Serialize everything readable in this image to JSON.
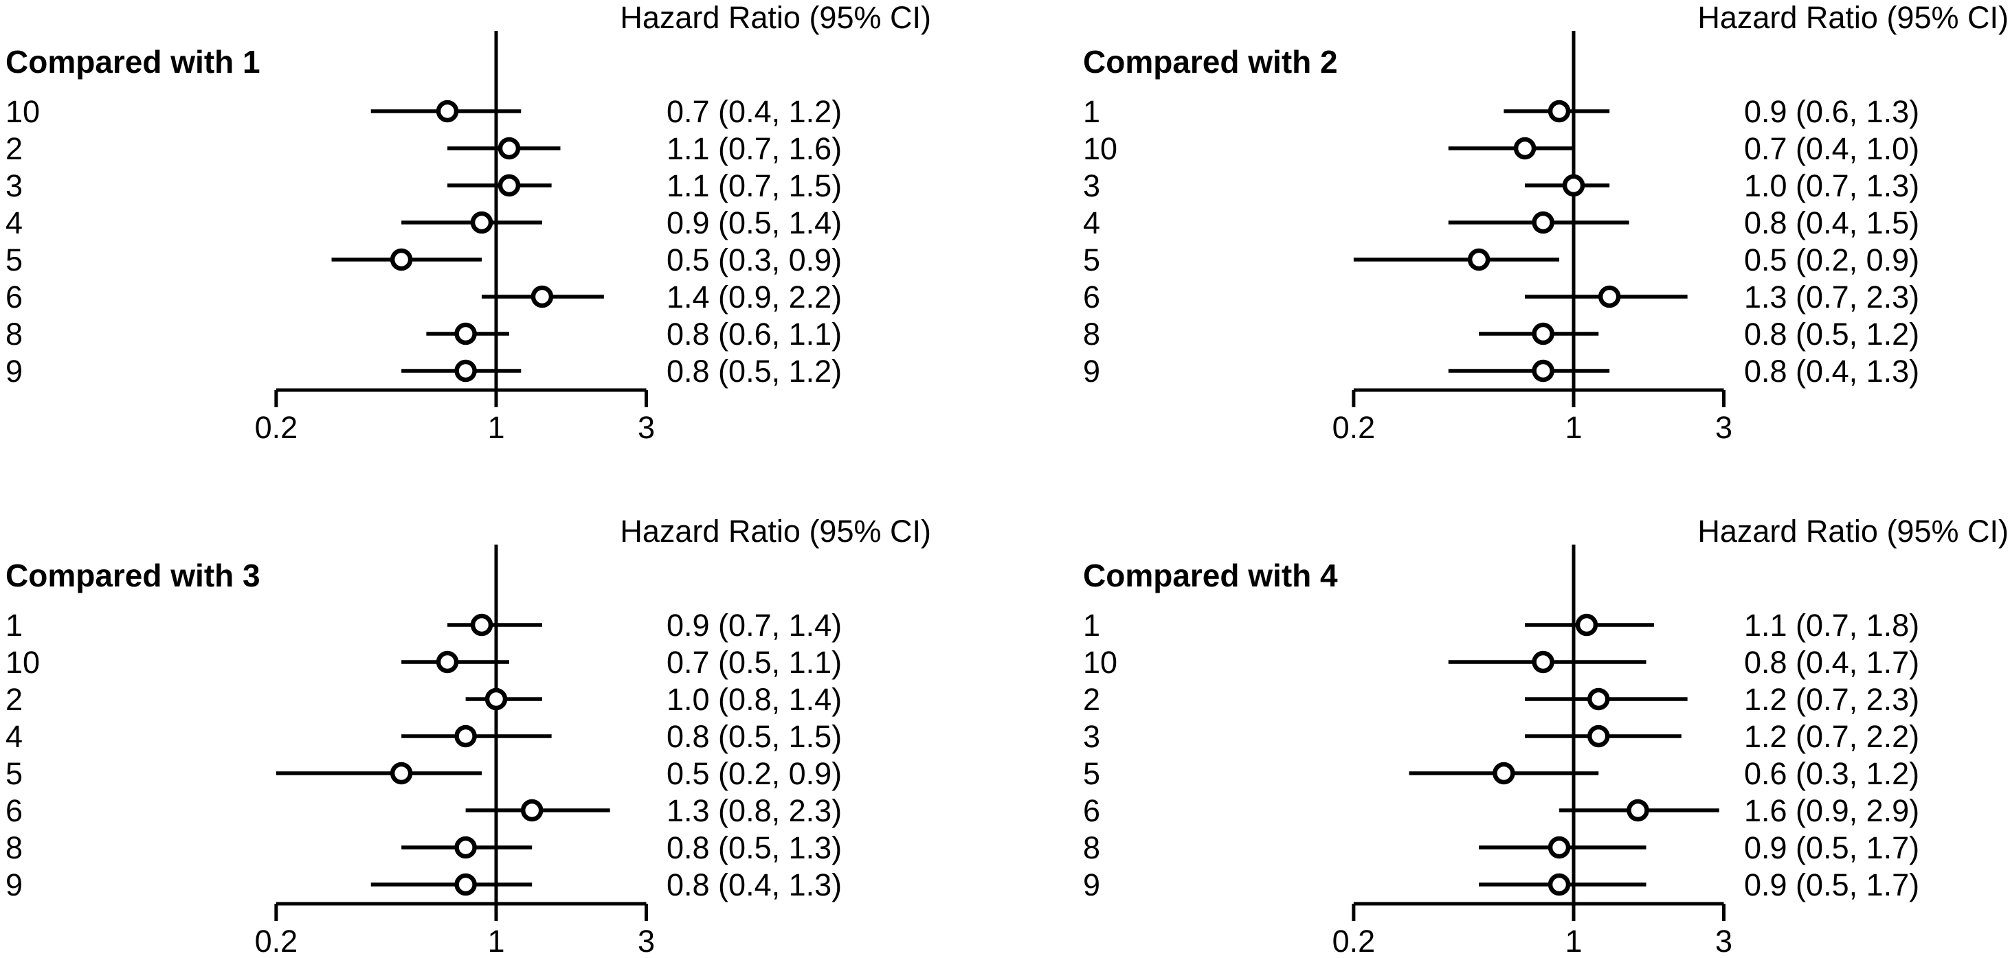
{
  "figure": {
    "background": "#ffffff",
    "foreground": "#000000"
  },
  "chart_data": [
    {
      "type": "forest",
      "panel": "top-left",
      "title": "Compared with 1",
      "column_header": "Hazard Ratio (95% CI)",
      "x_axis": {
        "scale": "log",
        "ticks": [
          0.2,
          1,
          3
        ],
        "tick_labels": [
          "0.2",
          "1",
          "3"
        ],
        "reference_line": 1
      },
      "rows": [
        {
          "label": "10",
          "hr": 0.7,
          "ci_low": 0.4,
          "ci_high": 1.2,
          "text": "0.7 (0.4, 1.2)"
        },
        {
          "label": "2",
          "hr": 1.1,
          "ci_low": 0.7,
          "ci_high": 1.6,
          "text": "1.1 (0.7, 1.6)"
        },
        {
          "label": "3",
          "hr": 1.1,
          "ci_low": 0.7,
          "ci_high": 1.5,
          "text": "1.1 (0.7, 1.5)"
        },
        {
          "label": "4",
          "hr": 0.9,
          "ci_low": 0.5,
          "ci_high": 1.4,
          "text": "0.9 (0.5, 1.4)"
        },
        {
          "label": "5",
          "hr": 0.5,
          "ci_low": 0.3,
          "ci_high": 0.9,
          "text": "0.5 (0.3, 0.9)"
        },
        {
          "label": "6",
          "hr": 1.4,
          "ci_low": 0.9,
          "ci_high": 2.2,
          "text": "1.4 (0.9, 2.2)"
        },
        {
          "label": "8",
          "hr": 0.8,
          "ci_low": 0.6,
          "ci_high": 1.1,
          "text": "0.8 (0.6, 1.1)"
        },
        {
          "label": "9",
          "hr": 0.8,
          "ci_low": 0.5,
          "ci_high": 1.2,
          "text": "0.8 (0.5, 1.2)"
        }
      ]
    },
    {
      "type": "forest",
      "panel": "top-right",
      "title": "Compared with 2",
      "column_header": "Hazard Ratio (95% CI)",
      "x_axis": {
        "scale": "log",
        "ticks": [
          0.2,
          1,
          3
        ],
        "tick_labels": [
          "0.2",
          "1",
          "3"
        ],
        "reference_line": 1
      },
      "rows": [
        {
          "label": "1",
          "hr": 0.9,
          "ci_low": 0.6,
          "ci_high": 1.3,
          "text": "0.9 (0.6, 1.3)"
        },
        {
          "label": "10",
          "hr": 0.7,
          "ci_low": 0.4,
          "ci_high": 1.0,
          "text": "0.7 (0.4, 1.0)"
        },
        {
          "label": "3",
          "hr": 1.0,
          "ci_low": 0.7,
          "ci_high": 1.3,
          "text": "1.0 (0.7, 1.3)"
        },
        {
          "label": "4",
          "hr": 0.8,
          "ci_low": 0.4,
          "ci_high": 1.5,
          "text": "0.8 (0.4, 1.5)"
        },
        {
          "label": "5",
          "hr": 0.5,
          "ci_low": 0.2,
          "ci_high": 0.9,
          "text": "0.5 (0.2, 0.9)"
        },
        {
          "label": "6",
          "hr": 1.3,
          "ci_low": 0.7,
          "ci_high": 2.3,
          "text": "1.3 (0.7, 2.3)"
        },
        {
          "label": "8",
          "hr": 0.8,
          "ci_low": 0.5,
          "ci_high": 1.2,
          "text": "0.8 (0.5, 1.2)"
        },
        {
          "label": "9",
          "hr": 0.8,
          "ci_low": 0.4,
          "ci_high": 1.3,
          "text": "0.8 (0.4, 1.3)"
        }
      ]
    },
    {
      "type": "forest",
      "panel": "bottom-left",
      "title": "Compared with 3",
      "column_header": "Hazard Ratio (95% CI)",
      "x_axis": {
        "scale": "log",
        "ticks": [
          0.2,
          1,
          3
        ],
        "tick_labels": [
          "0.2",
          "1",
          "3"
        ],
        "reference_line": 1
      },
      "rows": [
        {
          "label": "1",
          "hr": 0.9,
          "ci_low": 0.7,
          "ci_high": 1.4,
          "text": "0.9 (0.7, 1.4)"
        },
        {
          "label": "10",
          "hr": 0.7,
          "ci_low": 0.5,
          "ci_high": 1.1,
          "text": "0.7 (0.5, 1.1)"
        },
        {
          "label": "2",
          "hr": 1.0,
          "ci_low": 0.8,
          "ci_high": 1.4,
          "text": "1.0 (0.8, 1.4)"
        },
        {
          "label": "4",
          "hr": 0.8,
          "ci_low": 0.5,
          "ci_high": 1.5,
          "text": "0.8 (0.5, 1.5)"
        },
        {
          "label": "5",
          "hr": 0.5,
          "ci_low": 0.2,
          "ci_high": 0.9,
          "text": "0.5 (0.2, 0.9)"
        },
        {
          "label": "6",
          "hr": 1.3,
          "ci_low": 0.8,
          "ci_high": 2.3,
          "text": "1.3 (0.8, 2.3)"
        },
        {
          "label": "8",
          "hr": 0.8,
          "ci_low": 0.5,
          "ci_high": 1.3,
          "text": "0.8 (0.5, 1.3)"
        },
        {
          "label": "9",
          "hr": 0.8,
          "ci_low": 0.4,
          "ci_high": 1.3,
          "text": "0.8 (0.4, 1.3)"
        }
      ]
    },
    {
      "type": "forest",
      "panel": "bottom-right",
      "title": "Compared with 4",
      "column_header": "Hazard Ratio (95% CI)",
      "x_axis": {
        "scale": "log",
        "ticks": [
          0.2,
          1,
          3
        ],
        "tick_labels": [
          "0.2",
          "1",
          "3"
        ],
        "reference_line": 1
      },
      "rows": [
        {
          "label": "1",
          "hr": 1.1,
          "ci_low": 0.7,
          "ci_high": 1.8,
          "text": "1.1 (0.7, 1.8)"
        },
        {
          "label": "10",
          "hr": 0.8,
          "ci_low": 0.4,
          "ci_high": 1.7,
          "text": "0.8 (0.4, 1.7)"
        },
        {
          "label": "2",
          "hr": 1.2,
          "ci_low": 0.7,
          "ci_high": 2.3,
          "text": "1.2 (0.7, 2.3)"
        },
        {
          "label": "3",
          "hr": 1.2,
          "ci_low": 0.7,
          "ci_high": 2.2,
          "text": "1.2 (0.7, 2.2)"
        },
        {
          "label": "5",
          "hr": 0.6,
          "ci_low": 0.3,
          "ci_high": 1.2,
          "text": "0.6 (0.3, 1.2)"
        },
        {
          "label": "6",
          "hr": 1.6,
          "ci_low": 0.9,
          "ci_high": 2.9,
          "text": "1.6 (0.9, 2.9)"
        },
        {
          "label": "8",
          "hr": 0.9,
          "ci_low": 0.5,
          "ci_high": 1.7,
          "text": "0.9 (0.5, 1.7)"
        },
        {
          "label": "9",
          "hr": 0.9,
          "ci_low": 0.5,
          "ci_high": 1.7,
          "text": "0.9 (0.5, 1.7)"
        }
      ]
    }
  ]
}
